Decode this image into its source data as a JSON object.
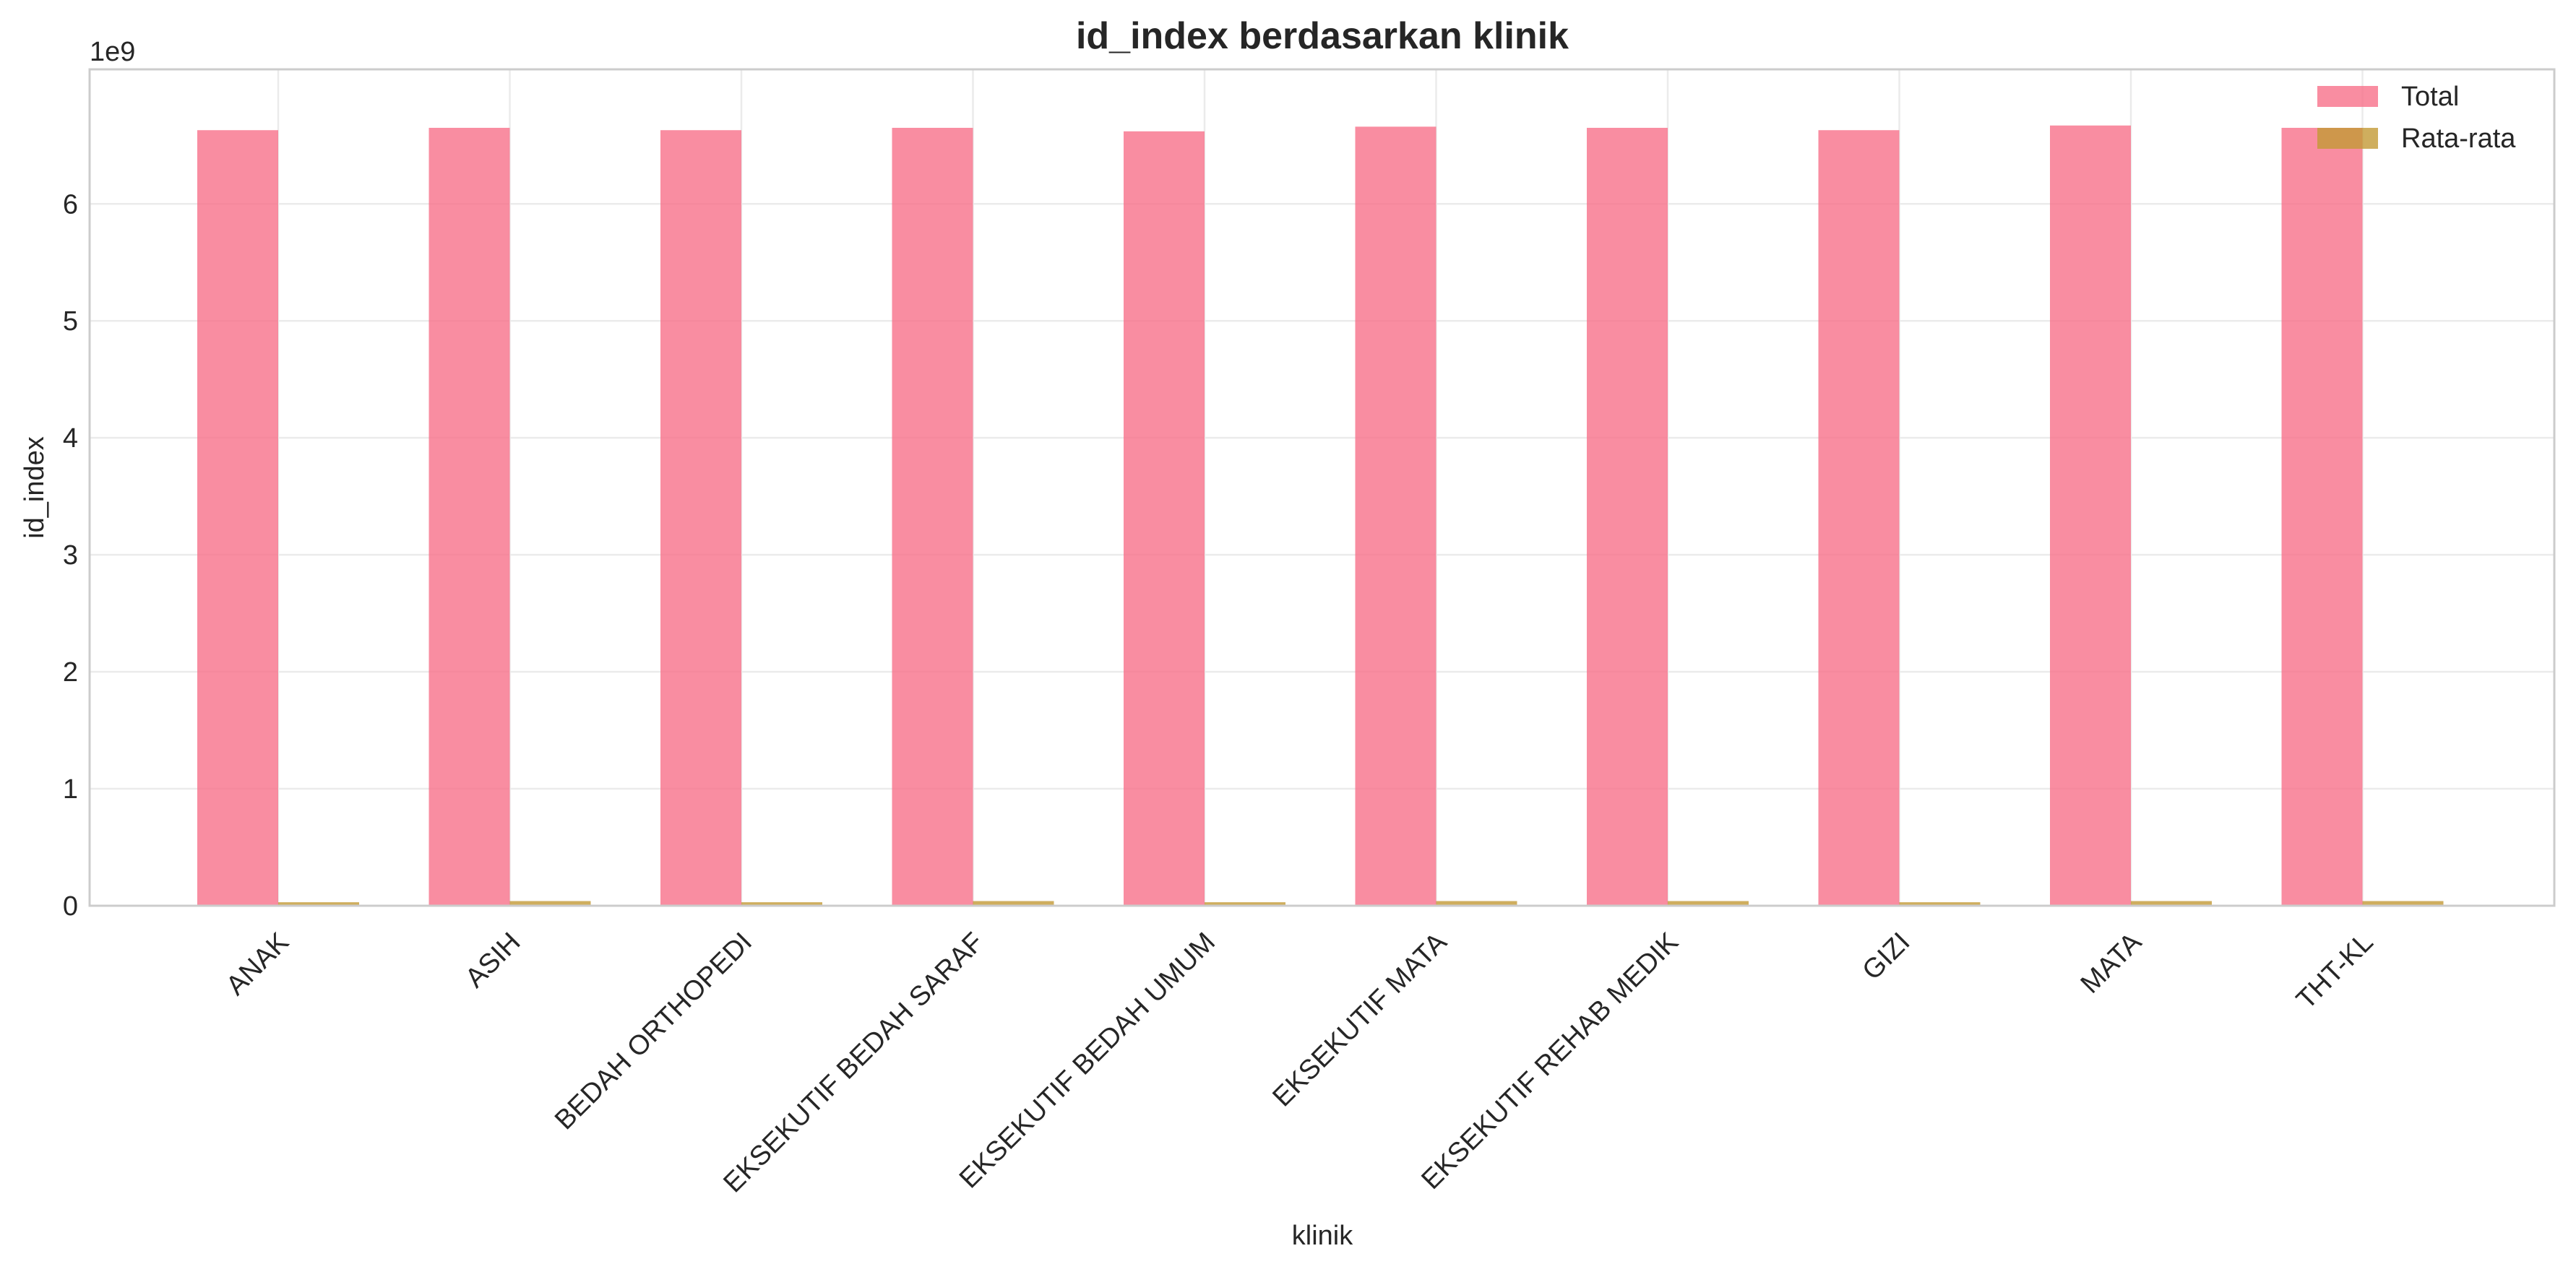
{
  "chart_data": {
    "type": "bar",
    "title": "id_index berdasarkan klinik",
    "xlabel": "klinik",
    "ylabel": "id_index",
    "y_exponent_label": "1e9",
    "ylim": [
      0,
      7.15
    ],
    "yticks": [
      0,
      1,
      2,
      3,
      4,
      5,
      6
    ],
    "grid": true,
    "legend_position": "top-right",
    "categories": [
      "ANAK",
      "ASIH",
      "BEDAH ORTHOPEDI",
      "EKSEKUTIF BEDAH SARAF",
      "EKSEKUTIF BEDAH UMUM",
      "EKSEKUTIF MATA",
      "EKSEKUTIF REHAB MEDIK",
      "GIZI",
      "MATA",
      "THT-KL"
    ],
    "series": [
      {
        "name": "Total",
        "color": "#f77189",
        "values": [
          6.63,
          6.65,
          6.63,
          6.65,
          6.62,
          6.66,
          6.65,
          6.63,
          6.67,
          6.65
        ]
      },
      {
        "name": "Rata-rata",
        "color": "#c39a36",
        "values": [
          0.03,
          0.04,
          0.03,
          0.04,
          0.03,
          0.04,
          0.04,
          0.03,
          0.04,
          0.04
        ]
      }
    ]
  }
}
